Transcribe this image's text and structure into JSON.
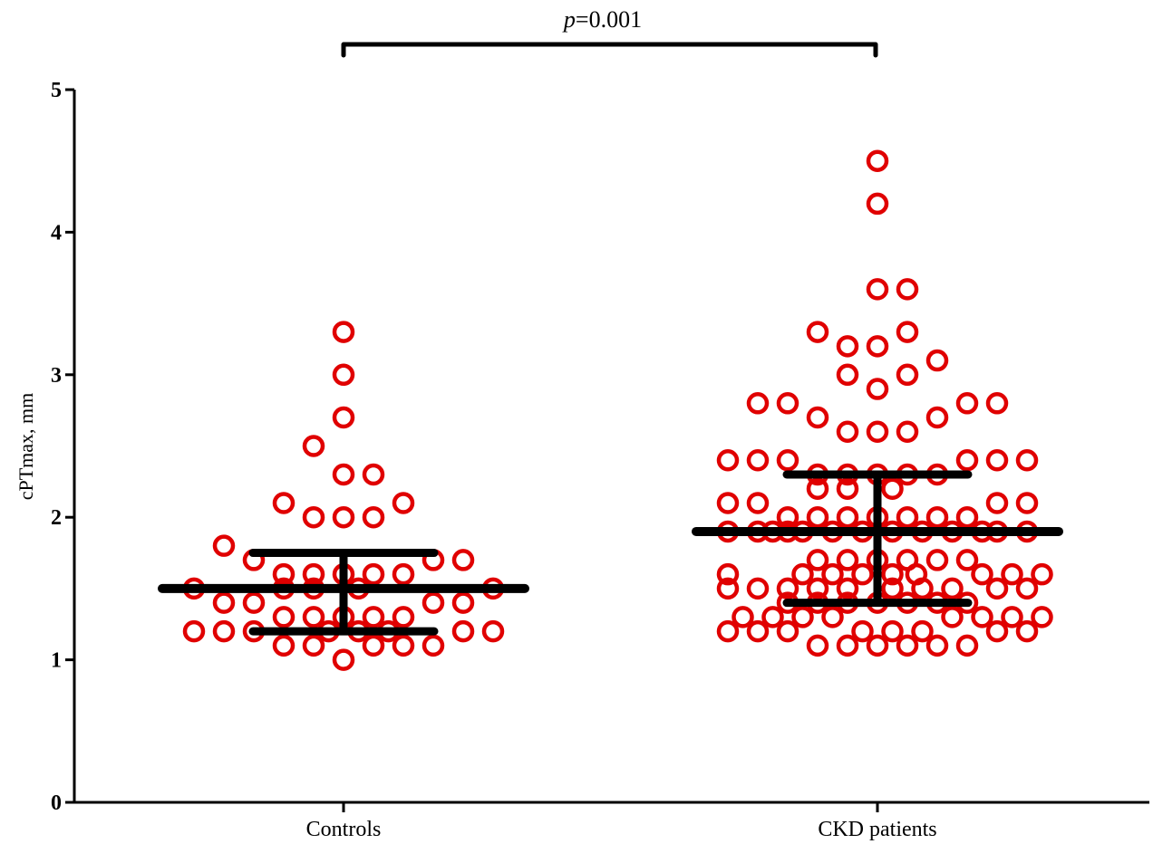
{
  "chart_data": {
    "type": "scatter",
    "ylabel": "cPTmax, mm",
    "ylim": [
      0,
      5
    ],
    "yticks": [
      "0",
      "1",
      "2",
      "3",
      "4",
      "5"
    ],
    "categories": [
      "Controls",
      "CKD patients"
    ],
    "annotation": {
      "p_symbol": "p",
      "p_text": "=0.001"
    },
    "marker_color": "#e00000",
    "bar_color": "#000000",
    "groups": [
      {
        "category": "Controls",
        "median": 1.5,
        "q1": 1.2,
        "q3": 1.75,
        "points": [
          {
            "dx": 0,
            "y": 3.3
          },
          {
            "dx": 0,
            "y": 3.0
          },
          {
            "dx": 0,
            "y": 2.7
          },
          {
            "dx": -1,
            "y": 2.5
          },
          {
            "dx": 0,
            "y": 2.3
          },
          {
            "dx": 1,
            "y": 2.3
          },
          {
            "dx": -2,
            "y": 2.1
          },
          {
            "dx": 2,
            "y": 2.1
          },
          {
            "dx": -1,
            "y": 2.0
          },
          {
            "dx": 0,
            "y": 2.0
          },
          {
            "dx": 1,
            "y": 2.0
          },
          {
            "dx": -4,
            "y": 1.8
          },
          {
            "dx": -3,
            "y": 1.7
          },
          {
            "dx": 3,
            "y": 1.7
          },
          {
            "dx": 4,
            "y": 1.7
          },
          {
            "dx": -2,
            "y": 1.6
          },
          {
            "dx": -1,
            "y": 1.6
          },
          {
            "dx": 0,
            "y": 1.6
          },
          {
            "dx": 1,
            "y": 1.6
          },
          {
            "dx": 2,
            "y": 1.6
          },
          {
            "dx": -5,
            "y": 1.5
          },
          {
            "dx": -2,
            "y": 1.5
          },
          {
            "dx": -1,
            "y": 1.5
          },
          {
            "dx": 0.5,
            "y": 1.5
          },
          {
            "dx": 5,
            "y": 1.5
          },
          {
            "dx": -4,
            "y": 1.4
          },
          {
            "dx": -3,
            "y": 1.4
          },
          {
            "dx": 3,
            "y": 1.4
          },
          {
            "dx": 4,
            "y": 1.4
          },
          {
            "dx": -2,
            "y": 1.3
          },
          {
            "dx": -1,
            "y": 1.3
          },
          {
            "dx": 0,
            "y": 1.3
          },
          {
            "dx": 1,
            "y": 1.3
          },
          {
            "dx": 2,
            "y": 1.3
          },
          {
            "dx": -5,
            "y": 1.2
          },
          {
            "dx": -4,
            "y": 1.2
          },
          {
            "dx": -3,
            "y": 1.2
          },
          {
            "dx": -0.5,
            "y": 1.2
          },
          {
            "dx": 0.5,
            "y": 1.2
          },
          {
            "dx": 1.5,
            "y": 1.2
          },
          {
            "dx": 4,
            "y": 1.2
          },
          {
            "dx": 5,
            "y": 1.2
          },
          {
            "dx": -2,
            "y": 1.1
          },
          {
            "dx": -1,
            "y": 1.1
          },
          {
            "dx": 1,
            "y": 1.1
          },
          {
            "dx": 2,
            "y": 1.1
          },
          {
            "dx": 3,
            "y": 1.1
          },
          {
            "dx": 0,
            "y": 1.0
          }
        ]
      },
      {
        "category": "CKD patients",
        "median": 1.9,
        "q1": 1.4,
        "q3": 2.3,
        "points": [
          {
            "dx": 0,
            "y": 4.5
          },
          {
            "dx": 0,
            "y": 4.2
          },
          {
            "dx": 0,
            "y": 3.6
          },
          {
            "dx": 1,
            "y": 3.6
          },
          {
            "dx": -2,
            "y": 3.3
          },
          {
            "dx": 1,
            "y": 3.3
          },
          {
            "dx": -1,
            "y": 3.2
          },
          {
            "dx": 0,
            "y": 3.2
          },
          {
            "dx": 2,
            "y": 3.1
          },
          {
            "dx": -1,
            "y": 3.0
          },
          {
            "dx": 1,
            "y": 3.0
          },
          {
            "dx": 0,
            "y": 2.9
          },
          {
            "dx": -4,
            "y": 2.8
          },
          {
            "dx": -3,
            "y": 2.8
          },
          {
            "dx": 3,
            "y": 2.8
          },
          {
            "dx": 4,
            "y": 2.8
          },
          {
            "dx": -2,
            "y": 2.7
          },
          {
            "dx": 2,
            "y": 2.7
          },
          {
            "dx": -1,
            "y": 2.6
          },
          {
            "dx": 0,
            "y": 2.6
          },
          {
            "dx": 1,
            "y": 2.6
          },
          {
            "dx": -5,
            "y": 2.4
          },
          {
            "dx": -4,
            "y": 2.4
          },
          {
            "dx": -3,
            "y": 2.4
          },
          {
            "dx": 3,
            "y": 2.4
          },
          {
            "dx": 4,
            "y": 2.4
          },
          {
            "dx": 5,
            "y": 2.4
          },
          {
            "dx": -2,
            "y": 2.3
          },
          {
            "dx": -1,
            "y": 2.3
          },
          {
            "dx": 0,
            "y": 2.3
          },
          {
            "dx": 1,
            "y": 2.3
          },
          {
            "dx": 2,
            "y": 2.3
          },
          {
            "dx": -2,
            "y": 2.2
          },
          {
            "dx": -1,
            "y": 2.2
          },
          {
            "dx": 0.5,
            "y": 2.2
          },
          {
            "dx": -5,
            "y": 2.1
          },
          {
            "dx": -4,
            "y": 2.1
          },
          {
            "dx": 4,
            "y": 2.1
          },
          {
            "dx": 5,
            "y": 2.1
          },
          {
            "dx": -3,
            "y": 2.0
          },
          {
            "dx": -2,
            "y": 2.0
          },
          {
            "dx": -1,
            "y": 2.0
          },
          {
            "dx": 0,
            "y": 2.0
          },
          {
            "dx": 1,
            "y": 2.0
          },
          {
            "dx": 2,
            "y": 2.0
          },
          {
            "dx": 3,
            "y": 2.0
          },
          {
            "dx": -5,
            "y": 1.9
          },
          {
            "dx": -4,
            "y": 1.9
          },
          {
            "dx": -3.5,
            "y": 1.9
          },
          {
            "dx": -3,
            "y": 1.9
          },
          {
            "dx": -2.5,
            "y": 1.9
          },
          {
            "dx": -1.5,
            "y": 1.9
          },
          {
            "dx": -0.5,
            "y": 1.9
          },
          {
            "dx": 0.5,
            "y": 1.9
          },
          {
            "dx": 1.5,
            "y": 1.9
          },
          {
            "dx": 2.5,
            "y": 1.9
          },
          {
            "dx": 3.5,
            "y": 1.9
          },
          {
            "dx": 4,
            "y": 1.9
          },
          {
            "dx": 5,
            "y": 1.9
          },
          {
            "dx": -2,
            "y": 1.7
          },
          {
            "dx": -1,
            "y": 1.7
          },
          {
            "dx": 0,
            "y": 1.7
          },
          {
            "dx": 1,
            "y": 1.7
          },
          {
            "dx": 2,
            "y": 1.7
          },
          {
            "dx": 3,
            "y": 1.7
          },
          {
            "dx": -5,
            "y": 1.6
          },
          {
            "dx": -2.5,
            "y": 1.6
          },
          {
            "dx": -1.5,
            "y": 1.6
          },
          {
            "dx": -0.5,
            "y": 1.6
          },
          {
            "dx": 0.5,
            "y": 1.6
          },
          {
            "dx": 1.3,
            "y": 1.6
          },
          {
            "dx": 3.5,
            "y": 1.6
          },
          {
            "dx": 4.5,
            "y": 1.6
          },
          {
            "dx": 5.5,
            "y": 1.6
          },
          {
            "dx": -5,
            "y": 1.5
          },
          {
            "dx": -4,
            "y": 1.5
          },
          {
            "dx": -3,
            "y": 1.5
          },
          {
            "dx": -2,
            "y": 1.5
          },
          {
            "dx": -1,
            "y": 1.5
          },
          {
            "dx": 0.5,
            "y": 1.5
          },
          {
            "dx": 1.5,
            "y": 1.5
          },
          {
            "dx": 2.5,
            "y": 1.5
          },
          {
            "dx": 4,
            "y": 1.5
          },
          {
            "dx": 5,
            "y": 1.5
          },
          {
            "dx": -3,
            "y": 1.4
          },
          {
            "dx": -2,
            "y": 1.4
          },
          {
            "dx": -1,
            "y": 1.4
          },
          {
            "dx": 0,
            "y": 1.4
          },
          {
            "dx": 1,
            "y": 1.4
          },
          {
            "dx": 2,
            "y": 1.4
          },
          {
            "dx": 3,
            "y": 1.4
          },
          {
            "dx": -4.5,
            "y": 1.3
          },
          {
            "dx": -3.5,
            "y": 1.3
          },
          {
            "dx": -2.5,
            "y": 1.3
          },
          {
            "dx": -1.5,
            "y": 1.3
          },
          {
            "dx": 2.5,
            "y": 1.3
          },
          {
            "dx": 3.5,
            "y": 1.3
          },
          {
            "dx": 4.5,
            "y": 1.3
          },
          {
            "dx": 5.5,
            "y": 1.3
          },
          {
            "dx": -5,
            "y": 1.2
          },
          {
            "dx": -4,
            "y": 1.2
          },
          {
            "dx": -3,
            "y": 1.2
          },
          {
            "dx": -0.5,
            "y": 1.2
          },
          {
            "dx": 0.5,
            "y": 1.2
          },
          {
            "dx": 1.5,
            "y": 1.2
          },
          {
            "dx": 4,
            "y": 1.2
          },
          {
            "dx": 5,
            "y": 1.2
          },
          {
            "dx": -2,
            "y": 1.1
          },
          {
            "dx": -1,
            "y": 1.1
          },
          {
            "dx": 0,
            "y": 1.1
          },
          {
            "dx": 1,
            "y": 1.1
          },
          {
            "dx": 2,
            "y": 1.1
          },
          {
            "dx": 3,
            "y": 1.1
          }
        ]
      }
    ]
  }
}
